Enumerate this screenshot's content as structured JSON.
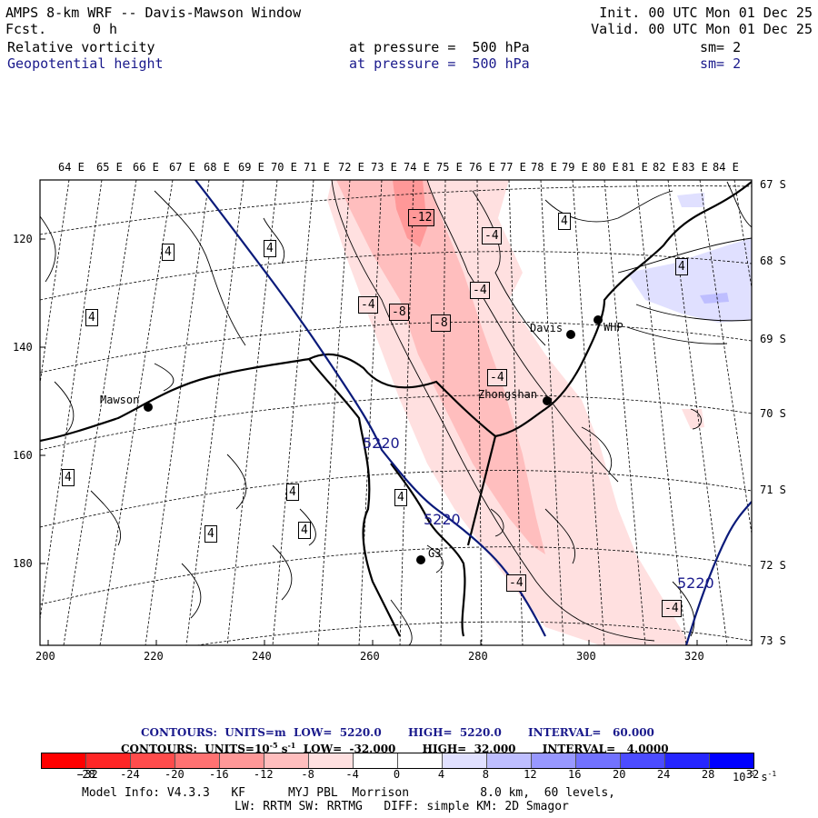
{
  "header": {
    "title": "AMPS 8-km WRF -- Davis-Mawson Window",
    "fcst_label": "Fcst.",
    "fcst_value": "0 h",
    "init": "Init. 00 UTC Mon 01 Dec 25",
    "valid": "Valid. 00 UTC Mon 01 Dec 25",
    "fields": [
      {
        "name": "Relative vorticity",
        "level": "at pressure =  500 hPa",
        "smooth": "sm= 2"
      },
      {
        "name": "Geopotential height",
        "level": "at pressure =  500 hPa",
        "smooth": "sm= 2"
      }
    ]
  },
  "map": {
    "lon_labels": [
      "64 E",
      "65 E",
      "66 E",
      "67 E",
      "68 E",
      "69 E",
      "70 E",
      "71 E",
      "72 E",
      "73 E",
      "74 E",
      "75 E",
      "76 E",
      "77 E",
      "78 E",
      "79 E",
      "80 E",
      "81 E",
      "82 E",
      "83 E",
      "84 E"
    ],
    "lat_labels": [
      "67 S",
      "68 S",
      "69 S",
      "70 S",
      "71 S",
      "72 S",
      "73 S"
    ],
    "y_ticks": [
      "120",
      "140",
      "160",
      "180"
    ],
    "x_ticks": [
      "200",
      "220",
      "240",
      "260",
      "280",
      "300",
      "320"
    ],
    "stations": [
      "Mawson",
      "Davis",
      "WHP",
      "Zhongshan",
      "G3"
    ],
    "vorticity_labels": [
      "-12",
      "-4",
      "-4",
      "-4",
      "-8",
      "-8",
      "-4",
      "-4",
      "-4",
      "4",
      "4",
      "4",
      "4",
      "4",
      "4",
      "4",
      "4",
      "4",
      "4"
    ],
    "height_labels": [
      "5220",
      "5220",
      "5220"
    ]
  },
  "footer": {
    "contours_height": "CONTOURS:  UNITS=m  LOW=  5220.0       HIGH=  5220.0       INTERVAL=   60.000",
    "contours_vort": "CONTOURS:  UNITS=10",
    "contours_vort_exp": "-5",
    "contours_vort_rest": " s",
    "contours_vort_exp2": "-1",
    "contours_vort_tail": "  LOW=  -32.000       HIGH=  32.000       INTERVAL=   4.0000",
    "colorbar_ticks": [
      "-32",
      "-28",
      "-24",
      "-20",
      "-16",
      "-12",
      "-8",
      "-4",
      "0",
      "4",
      "8",
      "12",
      "16",
      "20",
      "24",
      "28",
      "32"
    ],
    "colorbar_unit": "10",
    "colorbar_unit_exp": "-5",
    "colorbar_unit_tail": " s",
    "colorbar_unit_exp2": "-1",
    "colorbar_colors": [
      "#ff0000",
      "#ff2626",
      "#ff4c4c",
      "#ff7272",
      "#ff9898",
      "#ffbebe",
      "#ffe0e0",
      "#ffffff",
      "#ffffff",
      "#e0e0ff",
      "#bebeff",
      "#9898ff",
      "#7272ff",
      "#4c4cff",
      "#2626ff",
      "#0000ff"
    ],
    "model_info": "Model Info: V4.3.3   KF      MYJ PBL  Morrison          8.0 km,  60 levels,",
    "model_info2": "LW: RRTM SW: RRTMG   DIFF: simple KM: 2D Smagor"
  },
  "colors": {
    "height_line": "#0a1a7a",
    "label_blue": "#1a1a8c"
  }
}
